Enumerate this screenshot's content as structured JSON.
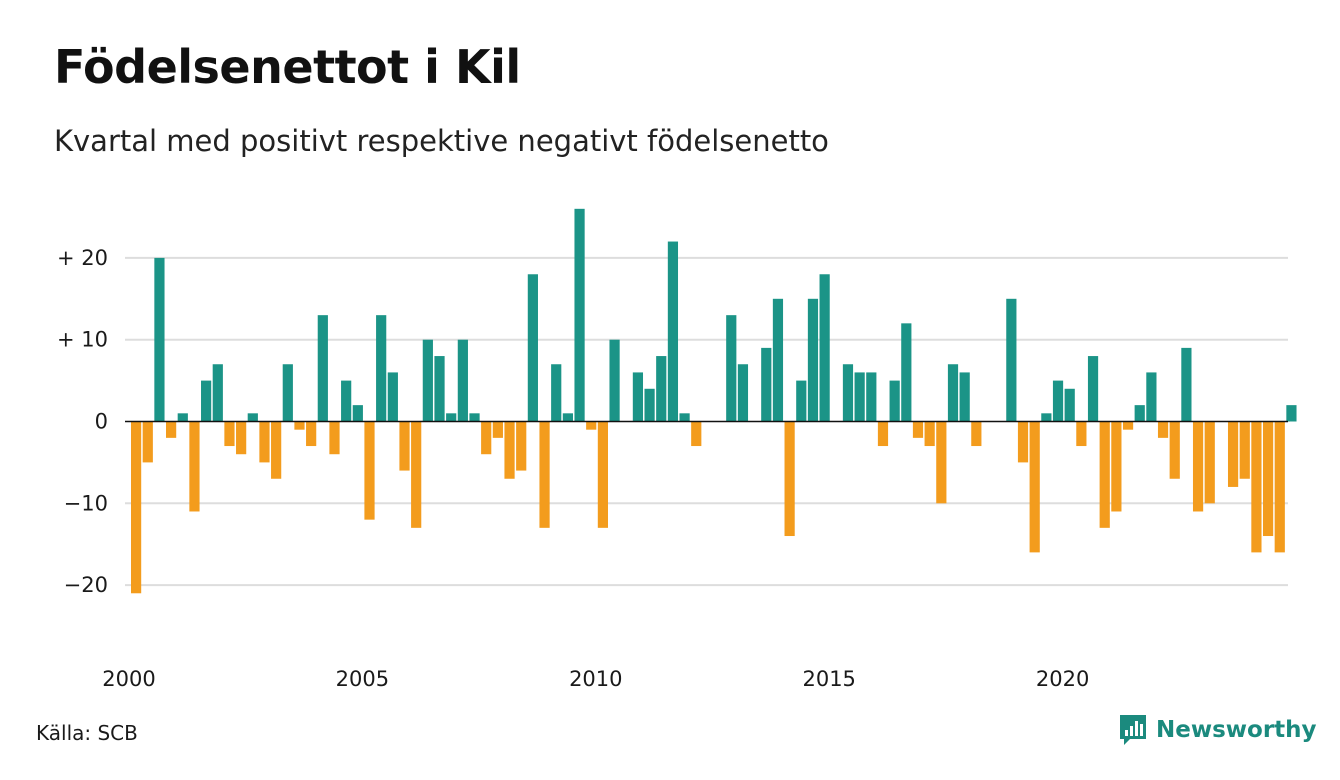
{
  "title": "Födelsenettot i Kil",
  "subtitle": "Kvartal med positivt respektive negativt födelsenetto",
  "source": "Källa: SCB",
  "brand": {
    "name": "Newsworthy",
    "icon": "newsworthy-logo-icon"
  },
  "colors": {
    "positive": "#1b9487",
    "negative": "#f39c1d",
    "grid": "#dddddd",
    "brand": "#1b8a7e"
  },
  "chart_data": {
    "type": "bar",
    "x_start_year": 2000,
    "periods_per_year": 4,
    "values": [
      -21,
      -5,
      20,
      -2,
      1,
      -11,
      5,
      7,
      -3,
      -4,
      1,
      -5,
      -7,
      7,
      -1,
      -3,
      13,
      -4,
      5,
      2,
      -12,
      13,
      6,
      -6,
      -13,
      10,
      8,
      1,
      10,
      1,
      -4,
      -2,
      -7,
      -6,
      18,
      -13,
      7,
      1,
      26,
      -1,
      -13,
      10,
      0,
      6,
      4,
      8,
      22,
      1,
      -3,
      0,
      0,
      13,
      7,
      0,
      9,
      15,
      -14,
      5,
      15,
      18,
      0,
      7,
      6,
      6,
      -3,
      5,
      12,
      -2,
      -3,
      -10,
      7,
      6,
      -3,
      0,
      0,
      15,
      -5,
      -16,
      1,
      5,
      4,
      -3,
      8,
      -13,
      -11,
      -1,
      2,
      6,
      -2,
      -7,
      9,
      -11,
      -10,
      0,
      -8,
      -7,
      -16,
      -14,
      -16,
      2
    ],
    "ylim": [
      -25,
      27
    ],
    "y_ticks": [
      20,
      10,
      0,
      -10,
      -20
    ],
    "y_tick_labels": [
      "+ 20",
      "+ 10",
      "0",
      "−10",
      "−20"
    ],
    "x_ticks": [
      2000,
      2005,
      2010,
      2015,
      2020
    ],
    "x_tick_labels": [
      "2000",
      "2005",
      "2010",
      "2015",
      "2020"
    ],
    "grid": true,
    "legend": "none"
  }
}
